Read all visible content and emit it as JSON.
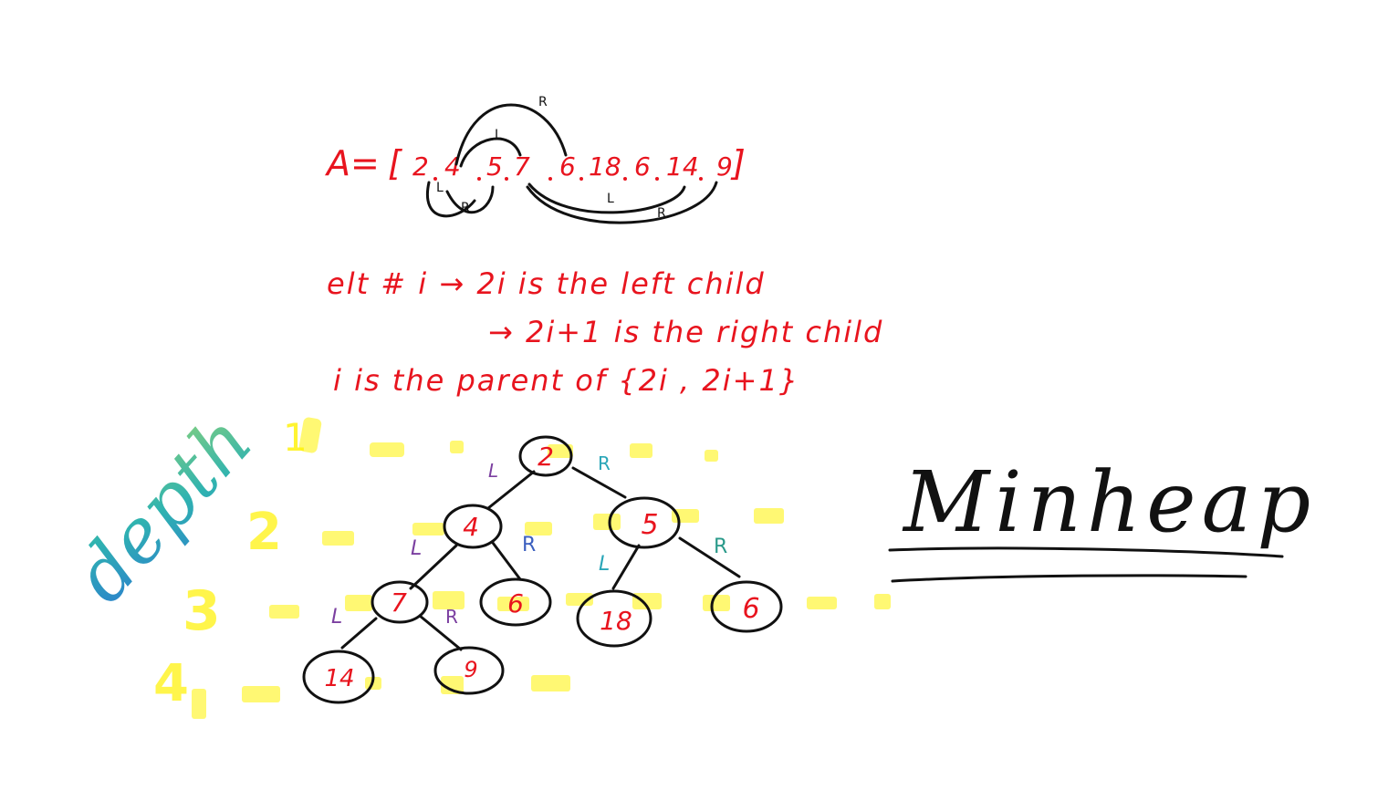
{
  "array_line": {
    "prefix": "A=",
    "open": "[",
    "values": [
      "2",
      "4",
      "5",
      "7",
      "6",
      "18",
      "6",
      "14",
      "9"
    ],
    "close": "]",
    "arc_labels": {
      "top_r": "R",
      "top_l": "L",
      "bottom_l": "L",
      "bottom_r": "R",
      "right_l": "L",
      "right_r": "R"
    }
  },
  "rules": {
    "line1": "elt # i → 2i  is the left child",
    "line2": "→ 2i+1  is the right child",
    "line3": "i  is the parent  of  {2i , 2i+1}"
  },
  "depth_label": "depth",
  "depth_numbers": [
    "1",
    "2",
    "3",
    "4"
  ],
  "title": "Minheap",
  "colors": {
    "red_ink": "#e8141e",
    "black_ink": "#111111",
    "highlight": "#fff200",
    "purple": "#7b3fa0",
    "teal": "#2aa6b8",
    "blue": "#3b5fbf",
    "depth_gradient": [
      "#2b7bd0",
      "#2fb3b0",
      "#8bd27a"
    ]
  },
  "tree": {
    "nodes": [
      {
        "id": "n1",
        "value": "2"
      },
      {
        "id": "n2",
        "value": "4"
      },
      {
        "id": "n3",
        "value": "5"
      },
      {
        "id": "n4",
        "value": "7"
      },
      {
        "id": "n5",
        "value": "6"
      },
      {
        "id": "n6",
        "value": "18"
      },
      {
        "id": "n7",
        "value": "6"
      },
      {
        "id": "n8",
        "value": "14"
      },
      {
        "id": "n9",
        "value": "9"
      }
    ],
    "edge_labels": {
      "n1_left": "L",
      "n1_right": "R",
      "n2_left": "L",
      "n2_right": "R",
      "n3_left": "L",
      "n3_right": "R",
      "n4_left": "L",
      "n4_right": "R"
    }
  }
}
